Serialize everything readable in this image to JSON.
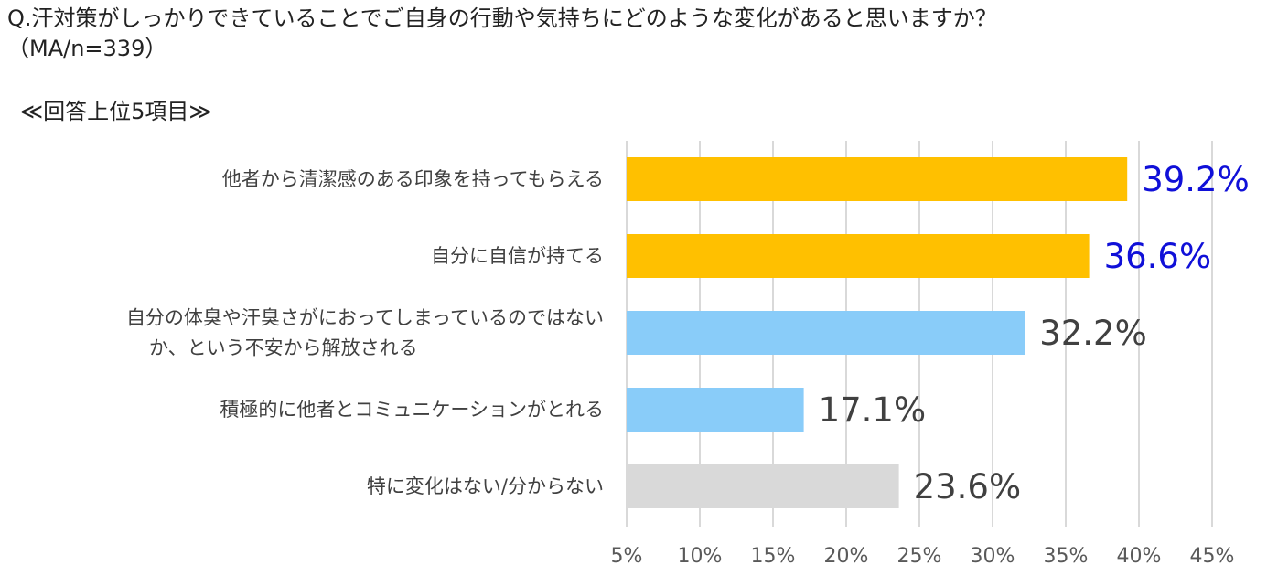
{
  "header": {
    "question_line1": "Q.汗対策がしっかりできていることでご自身の行動や気持ちにどのような変化があると思いますか？",
    "question_line2": "（MA/n=339）",
    "subtitle": "≪回答上位5項目≫"
  },
  "chart_data": {
    "type": "bar",
    "orientation": "horizontal",
    "categories": [
      [
        "他者から清潔感のある印象を持ってもらえる"
      ],
      [
        "自分に自信が持てる"
      ],
      [
        "自分の体臭や汗臭さがにおってしまっているのではない",
        "か、という不安から解放される"
      ],
      [
        "積極的に他者とコミュニケーションがとれる"
      ],
      [
        "特に変化はない/分からない"
      ]
    ],
    "values": [
      39.2,
      36.6,
      32.2,
      17.1,
      23.6
    ],
    "value_labels": [
      "39.2%",
      "36.6%",
      "32.2%",
      "17.1%",
      "23.6%"
    ],
    "bar_colors": [
      "#FFC000",
      "#FFC000",
      "#89CCF9",
      "#89CCF9",
      "#D9D9D9"
    ],
    "label_colors": [
      "#1010D8",
      "#1010D8",
      "#404040",
      "#404040",
      "#404040"
    ],
    "xlim": [
      5,
      45
    ],
    "xticks": [
      5,
      10,
      15,
      20,
      25,
      30,
      35,
      40,
      45
    ],
    "xtick_labels": [
      "5%",
      "10%",
      "15%",
      "20%",
      "25%",
      "30%",
      "35%",
      "40%",
      "45%"
    ],
    "grid": true,
    "grid_color": "#D9D9D9"
  }
}
